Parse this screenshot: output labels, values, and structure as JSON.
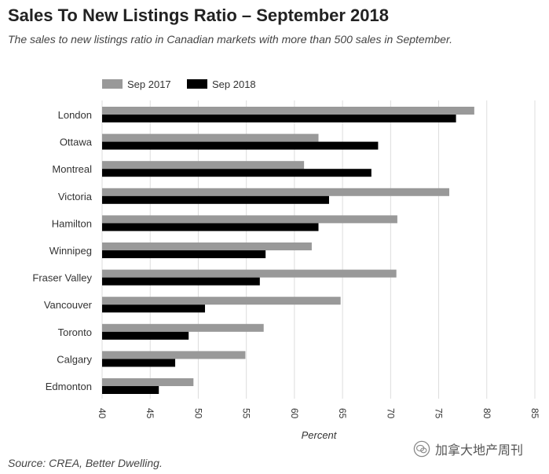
{
  "header": {
    "title": "Sales To New Listings Ratio – September 2018",
    "subtitle": "The sales to new listings ratio in Canadian markets with more than 500 sales in September."
  },
  "footer": {
    "source": "Source: CREA, Better Dwelling.",
    "watermark_text": "加拿大地产周刊"
  },
  "colors": {
    "sep2017": "#999999",
    "sep2018": "#000000",
    "grid": "#dddddd"
  },
  "chart_data": {
    "type": "bar",
    "orientation": "horizontal",
    "categories": [
      "London",
      "Ottawa",
      "Montreal",
      "Victoria",
      "Hamilton",
      "Winnipeg",
      "Fraser Valley",
      "Vancouver",
      "Toronto",
      "Calgary",
      "Edmonton"
    ],
    "series": [
      {
        "name": "Sep 2017",
        "values": [
          78.7,
          62.5,
          61.0,
          76.1,
          70.7,
          61.8,
          70.6,
          64.8,
          56.8,
          54.9,
          49.5
        ]
      },
      {
        "name": "Sep 2018",
        "values": [
          76.8,
          68.7,
          68.0,
          63.6,
          62.5,
          57.0,
          56.4,
          50.7,
          49.0,
          47.6,
          45.9
        ]
      }
    ],
    "title": "Sales To New Listings Ratio – September 2018",
    "xlabel": "Percent",
    "ylabel": "",
    "xlim": [
      40,
      85
    ],
    "xticks": [
      "40",
      "45",
      "50",
      "55",
      "60",
      "65",
      "70",
      "75",
      "80",
      "85"
    ],
    "grid": true,
    "legend_position": "top-left"
  }
}
